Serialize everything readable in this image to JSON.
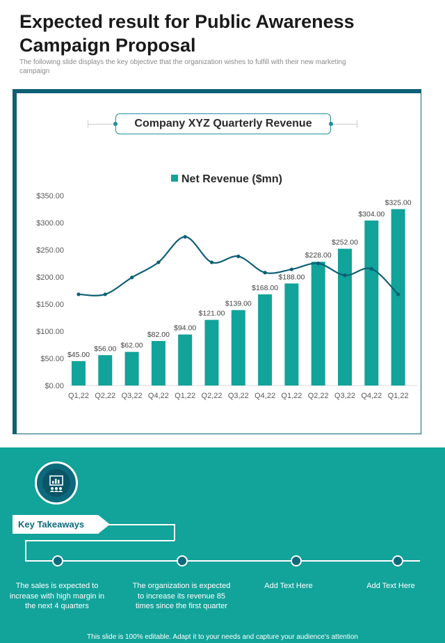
{
  "page": {
    "title": "Expected result for Public Awareness Campaign Proposal",
    "subtitle": "The following slide displays the key objective that the organization wishes to fulfill with their new marketing campaign"
  },
  "chart_data": {
    "type": "bar",
    "title": "Company XYZ Quarterly Revenue",
    "categories": [
      "Q1,22",
      "Q2,22",
      "Q3,22",
      "Q4,22",
      "Q1,22",
      "Q2,22",
      "Q3,22",
      "Q4,22",
      "Q1,22",
      "Q2,22",
      "Q3,22",
      "Q4,22",
      "Q1,22"
    ],
    "series": [
      {
        "name": "Net Revenue ($mn)",
        "type": "bar",
        "color": "#12a39a",
        "values": [
          45,
          56,
          62,
          82,
          94,
          121,
          139,
          168,
          188,
          228,
          252,
          304,
          325
        ],
        "data_labels": [
          "$45.00",
          "$56.00",
          "$62.00",
          "$82.00",
          "$94.00",
          "$121.00",
          "$139.00",
          "$168.00",
          "$188.00",
          "$228.00",
          "$252.00",
          "$304.00",
          "$325.00"
        ]
      },
      {
        "type": "line",
        "color": "#0d5f74",
        "values": [
          168,
          168,
          199,
          227,
          274,
          227,
          238,
          208,
          214,
          225,
          203,
          215,
          168
        ]
      }
    ],
    "ylim": [
      0,
      350
    ],
    "yticks": [
      0,
      50,
      100,
      150,
      200,
      250,
      300,
      350
    ],
    "ytick_labels": [
      "$0.00",
      "$50.00",
      "$100.00",
      "$150.00",
      "$200.00",
      "$250.00",
      "$300.00",
      "$350.00"
    ],
    "legend": "top-center",
    "grid": false
  },
  "takeaways": {
    "heading": "Key Takeaways",
    "icon": "presentation-chart-icon",
    "items": [
      "The sales is expected to increase with high margin in the next 4 quarters",
      "The organization is expected to increase its revenue 85 times since the first quarter",
      "Add Text Here",
      "Add Text Here"
    ]
  },
  "footer": "This slide is 100% editable. Adapt it to your needs and capture your audience's attention",
  "colors": {
    "accent": "#12a39a",
    "dark_teal": "#0d5f74"
  }
}
